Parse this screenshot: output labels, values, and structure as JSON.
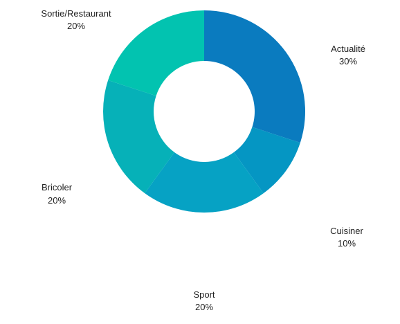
{
  "chart_data": {
    "type": "pie",
    "donut": true,
    "slices": [
      {
        "label": "Actualité",
        "value": 30,
        "pct_text": "30%",
        "color": "#0a7bbf"
      },
      {
        "label": "Cuisiner",
        "value": 10,
        "pct_text": "10%",
        "color": "#0596c3"
      },
      {
        "label": "Sport",
        "value": 20,
        "pct_text": "20%",
        "color": "#06a2c4"
      },
      {
        "label": "Bricoler",
        "value": 20,
        "pct_text": "20%",
        "color": "#06b1b8"
      },
      {
        "label": "Sortie/Restaurant",
        "value": 20,
        "pct_text": "20%",
        "color": "#02c3b0"
      }
    ],
    "title": "",
    "legend": "none"
  }
}
